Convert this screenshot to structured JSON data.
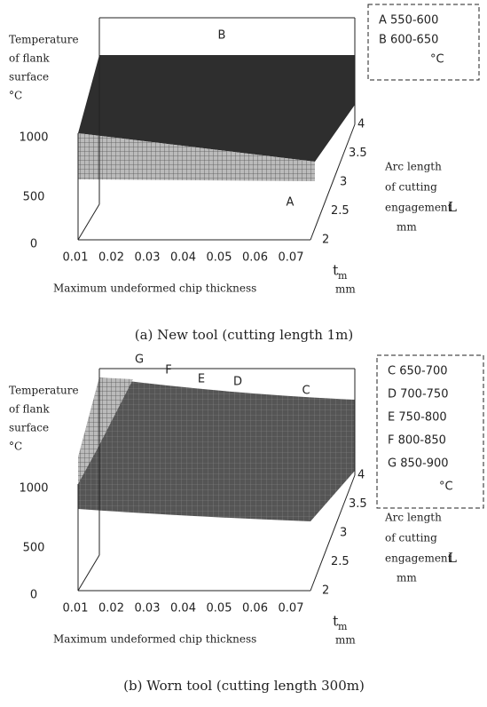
{
  "panels": [
    {
      "legend": [
        "A 550-600",
        "B 600-650",
        "°C"
      ],
      "z_label": [
        "Temperature",
        "of flank",
        "surface",
        "°C"
      ],
      "z_ticks": [
        1000,
        500,
        0
      ],
      "x_ticks": [
        0.01,
        0.02,
        0.03,
        0.04,
        0.05,
        0.06,
        0.07
      ],
      "x_label": "Maximum undeformed chip thickness",
      "x_symbol": "t",
      "x_subscript": "m",
      "x_unit": "mm",
      "y_ticks": [
        4,
        3.5,
        3,
        2.5,
        2
      ],
      "y_label": [
        "Arc length",
        "of cutting",
        "engagement"
      ],
      "y_symbol": "L",
      "y_unit": "mm",
      "surface_labels": [
        "B",
        "A"
      ],
      "caption": "(a)  New tool (cutting length 1m)"
    },
    {
      "legend": [
        "C 650-700",
        "D 700-750",
        "E 750-800",
        "F 800-850",
        "G 850-900",
        "°C"
      ],
      "z_label": [
        "Temperature",
        "of flank",
        "surface",
        "°C"
      ],
      "z_ticks": [
        1000,
        500,
        0
      ],
      "x_ticks": [
        0.01,
        0.02,
        0.03,
        0.04,
        0.05,
        0.06,
        0.07
      ],
      "x_label": "Maximum undeformed chip thickness",
      "x_symbol": "t",
      "x_subscript": "m",
      "x_unit": "mm",
      "y_ticks": [
        4,
        3.5,
        3,
        2.5,
        2
      ],
      "y_label": [
        "Arc length",
        "of cutting",
        "engagement"
      ],
      "y_symbol": "L",
      "y_unit": "mm",
      "surface_labels": [
        "G",
        "F",
        "E",
        "D",
        "C"
      ],
      "caption": "(b)  Worn tool (cutting length 300m)"
    }
  ]
}
